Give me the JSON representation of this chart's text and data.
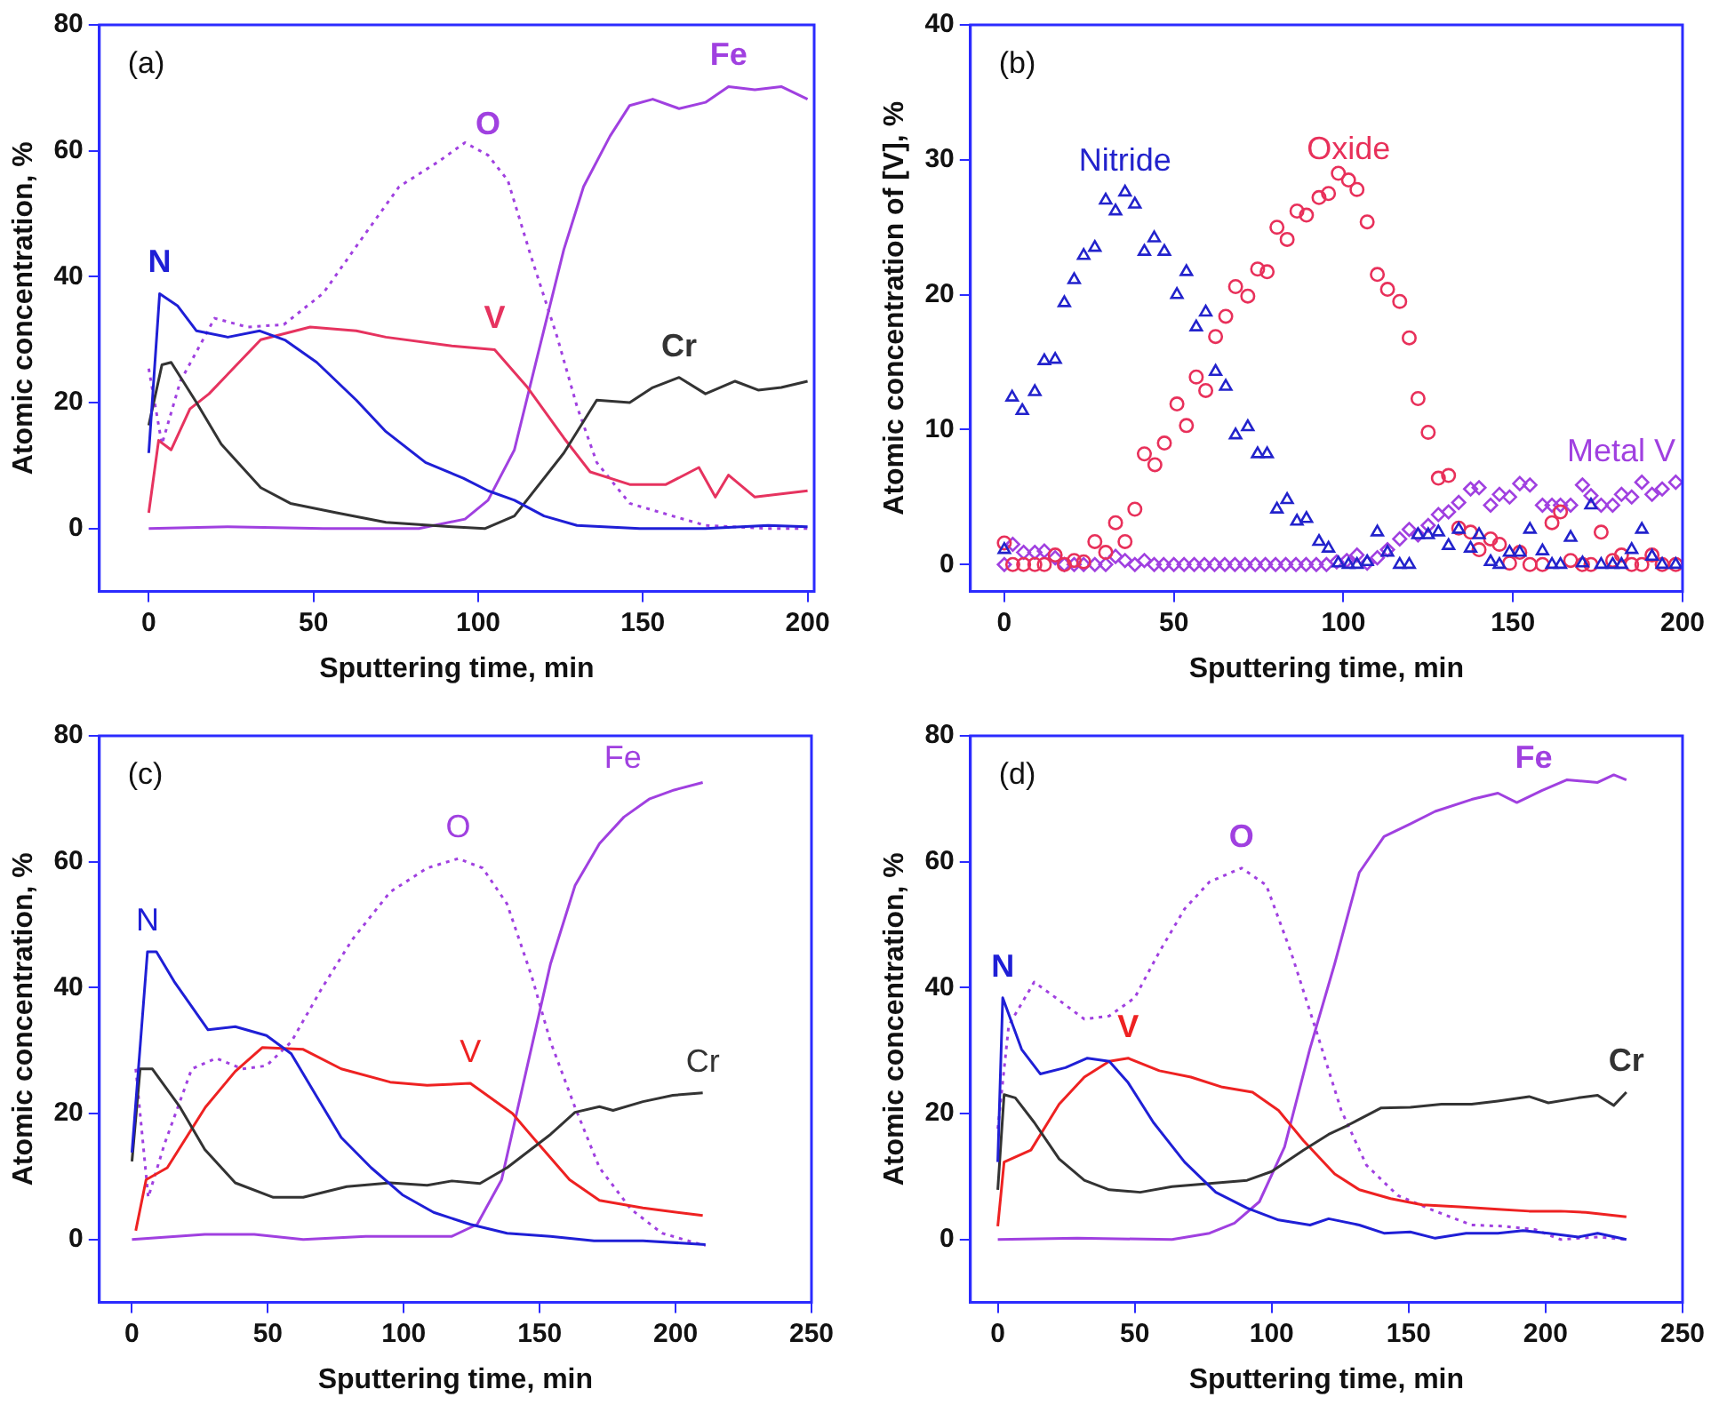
{
  "chart_data": [
    {
      "type": "line",
      "xlabel": "Sputtering time, min",
      "ylabel": "Atomic concentration, %",
      "xlim": [
        -15,
        202
      ],
      "ylim": [
        -10,
        80
      ],
      "xticks": [
        0,
        50,
        100,
        150,
        200
      ],
      "yticks": [
        0,
        20,
        40,
        60,
        80
      ],
      "grid": false,
      "legend": false,
      "marker": "none",
      "line_style": "solid",
      "annotations": [
        "(a)"
      ],
      "series": [
        {
          "name": "N",
          "color": "#1f1fd6",
          "x": [
            0,
            3.3,
            8.7,
            14.5,
            24,
            33.7,
            41.5,
            51,
            63,
            72,
            84,
            95.5,
            103,
            111,
            120,
            130,
            149,
            169,
            188,
            200
          ],
          "values": [
            12,
            37.3,
            35.4,
            31.4,
            30.4,
            31.4,
            29.9,
            26.4,
            20.4,
            15.4,
            10.5,
            8,
            6,
            4.5,
            2,
            0.5,
            0,
            0,
            0.5,
            0.3
          ]
        },
        {
          "name": "Cr",
          "color": "#333333",
          "x": [
            0,
            4,
            6.8,
            14.5,
            22,
            34,
            43,
            57,
            72,
            92,
            102,
            111,
            126,
            136,
            146,
            153,
            161,
            169,
            178,
            185,
            192,
            200
          ],
          "values": [
            16.4,
            26,
            26.4,
            20,
            13.4,
            6.5,
            4,
            2.5,
            1,
            0.3,
            0,
            2,
            12,
            20.4,
            20,
            22.4,
            24,
            21.4,
            23.4,
            22,
            22.4,
            23.4
          ]
        },
        {
          "name": "V",
          "color": "#e6335f",
          "x": [
            0,
            3,
            6.8,
            12.5,
            18.3,
            34,
            49,
            63,
            72,
            92,
            105,
            115,
            126,
            134,
            146,
            157,
            167,
            172,
            176,
            184,
            192,
            200
          ],
          "values": [
            2.5,
            14,
            12.5,
            19,
            21.4,
            30,
            32,
            31.4,
            30.4,
            29,
            28.4,
            22.4,
            14.4,
            9,
            7,
            7,
            9.7,
            5,
            8.5,
            5,
            5.5,
            6
          ]
        },
        {
          "name": "O",
          "color": "#a040e0",
          "line_style": "dotted",
          "x": [
            0,
            4,
            9.6,
            20,
            30,
            41,
            53,
            65,
            76,
            88,
            96,
            103,
            109,
            116,
            124,
            130,
            136,
            146,
            159,
            169,
            188,
            200
          ],
          "values": [
            25.4,
            13.4,
            23.4,
            33.4,
            32,
            32.4,
            37.4,
            46.3,
            54.3,
            58.3,
            61.3,
            59.3,
            55.3,
            43.3,
            30.4,
            19.4,
            10.5,
            4,
            2,
            0.5,
            0,
            0
          ]
        },
        {
          "name": "Fe",
          "color": "#a040e0",
          "x": [
            0,
            24,
            53,
            82,
            96,
            103,
            111,
            118,
            126,
            132,
            140,
            146,
            153,
            161,
            169,
            176,
            184,
            192,
            200
          ],
          "values": [
            0,
            0.3,
            0,
            0,
            1.5,
            4.5,
            12.5,
            27.4,
            44.3,
            54.3,
            62.3,
            67.2,
            68.2,
            66.7,
            67.7,
            70.2,
            69.7,
            70.2,
            68.2
          ]
        }
      ]
    },
    {
      "type": "scatter",
      "xlabel": "Sputtering time, min",
      "ylabel": "Atomic concentration of [V], %",
      "xlim": [
        -10,
        200
      ],
      "ylim": [
        -2,
        40
      ],
      "xticks": [
        0,
        50,
        100,
        150,
        200
      ],
      "yticks": [
        0,
        10,
        20,
        30,
        40
      ],
      "grid": false,
      "legend": false,
      "annotations": [
        "(b)"
      ],
      "series": [
        {
          "name": "Nitride",
          "color": "#2222cc",
          "marker": "triangle",
          "x": [
            0,
            2.3,
            5.3,
            9,
            11.8,
            15,
            17.7,
            20.6,
            23.4,
            26.7,
            29.9,
            32.8,
            35.6,
            38.5,
            41.3,
            44.2,
            47.2,
            50.9,
            53.7,
            56.6,
            59.4,
            62.3,
            65.3,
            68.2,
            71.8,
            74.7,
            77.5,
            80.4,
            83.4,
            86.3,
            89.1,
            92.8,
            95.6,
            98.5,
            101.5,
            104,
            107,
            110,
            113,
            116.6,
            119.4,
            122,
            125,
            128,
            131,
            134,
            137.5,
            140,
            143.4,
            146,
            149,
            152,
            155,
            158.7,
            161.5,
            164,
            167,
            170.5,
            173,
            176,
            179.4,
            182,
            185,
            188,
            191,
            194,
            198
          ],
          "values": [
            1.1,
            12.4,
            11.4,
            12.8,
            15.1,
            15.2,
            19.4,
            21.1,
            22.9,
            23.5,
            27,
            26.2,
            27.6,
            26.7,
            23.2,
            24.2,
            23.2,
            20,
            21.7,
            17.6,
            18.7,
            14.3,
            13.2,
            9.6,
            10.2,
            8.2,
            8.2,
            4.1,
            4.8,
            3.2,
            3.4,
            1.7,
            1.2,
            0.1,
            0,
            0,
            0.2,
            2.4,
            0.9,
            0,
            0,
            2.2,
            2.2,
            2.4,
            1.4,
            2.6,
            1.2,
            2.2,
            0.2,
            0,
            0.9,
            0.9,
            2.6,
            1,
            0,
            0,
            2,
            0.1,
            4.4,
            0,
            0,
            0,
            1.1,
            2.6,
            0.6,
            0,
            0
          ]
        },
        {
          "name": "Oxide",
          "color": "#e8305a",
          "marker": "circle",
          "x": [
            0,
            2.5,
            5.7,
            9,
            11.8,
            15,
            17.7,
            20.6,
            23.4,
            26.7,
            29.9,
            32.8,
            35.6,
            38.5,
            41.3,
            44.4,
            47.2,
            50.9,
            53.7,
            56.6,
            59.4,
            62.3,
            65.3,
            68.2,
            71.8,
            74.7,
            77.5,
            80.4,
            83.4,
            86.3,
            89.1,
            92.8,
            95.6,
            98.5,
            101.5,
            104,
            107,
            110,
            113,
            116.6,
            119.4,
            122,
            125,
            128,
            131,
            134,
            137.5,
            140,
            143.4,
            146,
            149,
            152,
            155,
            158.7,
            161.5,
            164,
            167,
            170.5,
            173,
            176,
            179.4,
            182,
            185,
            188,
            191,
            194,
            198
          ],
          "values": [
            1.6,
            0,
            0,
            0,
            0,
            0.7,
            0,
            0.3,
            0.2,
            1.7,
            0.9,
            3.1,
            1.7,
            4.1,
            8.2,
            7.4,
            9,
            11.9,
            10.3,
            13.9,
            12.9,
            16.9,
            18.4,
            20.6,
            19.9,
            21.9,
            21.7,
            25,
            24.1,
            26.2,
            25.9,
            27.2,
            27.5,
            29,
            28.5,
            27.8,
            25.4,
            21.5,
            20.4,
            19.5,
            16.8,
            12.3,
            9.8,
            6.4,
            6.6,
            2.7,
            2.4,
            1.1,
            1.9,
            1.5,
            0.1,
            0.9,
            0,
            0,
            3.1,
            3.9,
            0.3,
            0,
            0,
            2.4,
            0.3,
            0.7,
            0,
            0,
            0.7,
            0,
            0
          ]
        },
        {
          "name": "Metal V",
          "color": "#a040e0",
          "marker": "diamond",
          "x": [
            0,
            2.5,
            5.7,
            9,
            11.8,
            15,
            17.7,
            20.6,
            23.4,
            26.7,
            29.9,
            32.8,
            35.6,
            38.5,
            41.3,
            44.2,
            47,
            50,
            53,
            56,
            59,
            62,
            65,
            68,
            71,
            74,
            77,
            80,
            83,
            86,
            89,
            92,
            95,
            98,
            101,
            104,
            107,
            110,
            113,
            116.6,
            119.4,
            122,
            125,
            128,
            131,
            134,
            137.5,
            140,
            143.4,
            146,
            149,
            152,
            155,
            158.7,
            161.5,
            164,
            167,
            170.5,
            173,
            176,
            179.4,
            182,
            185,
            188,
            191,
            194,
            198
          ],
          "values": [
            0,
            1.5,
            0.9,
            0.9,
            1,
            0.5,
            0,
            0,
            0,
            0,
            0,
            0.6,
            0.3,
            0,
            0.3,
            0,
            0,
            0,
            0,
            0,
            0,
            0,
            0,
            0,
            0,
            0,
            0,
            0,
            0,
            0,
            0,
            0,
            0,
            0.2,
            0.3,
            0.7,
            0.1,
            0.5,
            1.1,
            1.9,
            2.6,
            2.2,
            2.9,
            3.7,
            3.9,
            4.6,
            5.6,
            5.7,
            4.4,
            5.2,
            5,
            6,
            5.9,
            4.4,
            4.4,
            4.4,
            4.4,
            5.9,
            5.1,
            4.4,
            4.4,
            5.2,
            5,
            6.1,
            5.2,
            5.6,
            6.1
          ]
        }
      ]
    },
    {
      "type": "line",
      "xlabel": "Sputtering time, min",
      "ylabel": "Atomic concentration, %",
      "xlim": [
        -12,
        250
      ],
      "ylim": [
        -10,
        80
      ],
      "xticks": [
        0,
        50,
        100,
        150,
        200,
        250
      ],
      "yticks": [
        0,
        20,
        40,
        60,
        80
      ],
      "grid": false,
      "legend": false,
      "marker": "none",
      "line_style": "solid",
      "annotations": [
        "(c)"
      ],
      "series": [
        {
          "name": "N",
          "color": "#1f1fd6",
          "x": [
            0,
            5.7,
            9,
            15.5,
            28,
            38,
            49.5,
            58.6,
            67.7,
            77,
            88,
            99.5,
            111,
            124.5,
            138,
            154,
            170,
            188,
            211
          ],
          "values": [
            13.8,
            45.7,
            45.7,
            41,
            33.3,
            33.8,
            32.4,
            29.5,
            22.9,
            16.2,
            11.4,
            7.1,
            4.3,
            2.4,
            1,
            0.5,
            -0.2,
            -0.2,
            -0.8
          ]
        },
        {
          "name": "Cr",
          "color": "#333333",
          "x": [
            0,
            3,
            7.5,
            17.7,
            26.8,
            38,
            52,
            63,
            79,
            95,
            108.6,
            117.7,
            128,
            138,
            154,
            163,
            172,
            177,
            188,
            199,
            210
          ],
          "values": [
            12.4,
            27.1,
            27.1,
            21,
            14.3,
            9,
            6.7,
            6.7,
            8.4,
            9,
            8.6,
            9.3,
            8.9,
            11.4,
            16.7,
            20.2,
            21.1,
            20.5,
            21.9,
            22.9,
            23.3
          ]
        },
        {
          "name": "V",
          "color": "#ee2222",
          "x": [
            1.4,
            5.2,
            13,
            27,
            38,
            48,
            63,
            77,
            95,
            108.6,
            124.5,
            140,
            149.5,
            161,
            172,
            188,
            210
          ],
          "values": [
            1.4,
            9.5,
            11.4,
            21,
            26.7,
            30.5,
            30.2,
            27.1,
            25,
            24.5,
            24.8,
            20,
            15.2,
            9.5,
            6.2,
            5,
            3.8
          ]
        },
        {
          "name": "O",
          "color": "#a040e0",
          "line_style": "dotted",
          "x": [
            1.4,
            6,
            12,
            22,
            31,
            40.5,
            49.5,
            58.6,
            70,
            81,
            95,
            108.6,
            120,
            129,
            138,
            147,
            154,
            163,
            172,
            183.6,
            195,
            211
          ],
          "values": [
            27.1,
            6.7,
            15.2,
            27.1,
            28.8,
            27.1,
            27.6,
            31.4,
            40,
            47.6,
            55.2,
            59,
            60.5,
            59,
            53.3,
            41.9,
            31.4,
            21,
            11.4,
            4.8,
            1,
            -1
          ]
        },
        {
          "name": "Fe",
          "color": "#a040e0",
          "x": [
            0,
            26.8,
            45,
            63,
            86,
            108.6,
            117.7,
            127,
            136,
            145,
            154,
            163,
            172,
            181,
            190.5,
            199.5,
            210
          ],
          "values": [
            0,
            0.8,
            0.8,
            0,
            0.5,
            0.5,
            0.5,
            2.4,
            9.5,
            26.7,
            43.8,
            56.2,
            62.9,
            67.1,
            70,
            71.4,
            72.6
          ]
        }
      ]
    },
    {
      "type": "line",
      "xlabel": "Sputtering time, min",
      "ylabel": "Atomic concentration, %",
      "xlim": [
        -10,
        250
      ],
      "ylim": [
        -10,
        80
      ],
      "xticks": [
        0,
        50,
        100,
        150,
        200,
        250
      ],
      "yticks": [
        0,
        20,
        40,
        60,
        80
      ],
      "grid": false,
      "legend": false,
      "marker": "none",
      "line_style": "solid",
      "annotations": [
        "(d)"
      ],
      "series": [
        {
          "name": "N",
          "color": "#1f1fd6",
          "x": [
            0,
            1.8,
            8.7,
            15.5,
            24.7,
            32.7,
            40.7,
            47.6,
            56.8,
            68.2,
            79.6,
            91,
            102.5,
            114,
            120.8,
            132,
            141,
            150.6,
            159.7,
            171,
            182.6,
            191.8,
            201,
            212,
            219,
            229.5
          ],
          "values": [
            12.3,
            38.4,
            30.2,
            26.3,
            27.3,
            28.8,
            28.3,
            24.9,
            18.6,
            12.3,
            7.5,
            5,
            3.1,
            2.3,
            3.3,
            2.3,
            1,
            1.2,
            0.2,
            1,
            1,
            1.4,
            1,
            0.4,
            1,
            0
          ]
        },
        {
          "name": "Cr",
          "color": "#333333",
          "x": [
            0,
            2.3,
            6.4,
            13.3,
            22.4,
            31.6,
            40.7,
            52,
            63.6,
            77.3,
            91,
            100,
            111.6,
            120.8,
            127.6,
            140,
            150.6,
            162,
            173,
            182.6,
            194,
            201,
            212,
            219,
            224.9,
            229.5
          ],
          "values": [
            7.9,
            23,
            22.5,
            18.6,
            12.8,
            9.4,
            7.9,
            7.5,
            8.4,
            8.9,
            9.4,
            10.8,
            14.2,
            16.7,
            18.1,
            20.9,
            21,
            21.5,
            21.5,
            22,
            22.7,
            21.7,
            22.5,
            22.9,
            21.3,
            23.4
          ]
        },
        {
          "name": "V",
          "color": "#ee2222",
          "x": [
            0,
            2.3,
            12.1,
            22.4,
            31.6,
            40.7,
            47.6,
            59,
            70.5,
            82,
            93,
            102.5,
            111.6,
            123,
            132,
            143.4,
            155,
            168.6,
            182.6,
            194,
            205.5,
            214.7,
            229.5
          ],
          "values": [
            2.1,
            12.3,
            14.2,
            21.5,
            25.8,
            28.3,
            28.8,
            26.8,
            25.8,
            24.2,
            23.4,
            20.5,
            15.7,
            10.4,
            7.9,
            6.5,
            5.5,
            5.2,
            4.8,
            4.5,
            4.5,
            4.3,
            3.6
          ]
        },
        {
          "name": "O",
          "color": "#a040e0",
          "line_style": "dotted",
          "x": [
            0,
            4,
            13.3,
            22.4,
            31.6,
            40.7,
            50,
            59,
            68.2,
            77.3,
            89,
            98,
            107,
            116.3,
            125.4,
            134.6,
            146,
            159.7,
            173,
            184.9,
            196,
            205.5,
            219,
            229.5
          ],
          "values": [
            17.6,
            34,
            40.9,
            38,
            35,
            35.5,
            38.4,
            45.7,
            52.5,
            56.8,
            59,
            56.3,
            45.7,
            33.1,
            20.5,
            11.8,
            7,
            4.5,
            2.3,
            2.1,
            1.6,
            0,
            0.4,
            0
          ]
        },
        {
          "name": "Fe",
          "color": "#a040e0",
          "x": [
            0,
            29,
            63.6,
            77.3,
            86.4,
            95.5,
            104.7,
            113.9,
            123,
            132,
            141,
            150.6,
            159.7,
            173,
            182.6,
            189.5,
            198.6,
            207.7,
            219,
            224.9,
            229.5
          ],
          "values": [
            0,
            0.2,
            0,
            1,
            2.6,
            6,
            14.7,
            30.2,
            43.8,
            58.3,
            64,
            66,
            68,
            69.9,
            70.9,
            69.4,
            71.3,
            73,
            72.6,
            73.8,
            73
          ]
        }
      ]
    }
  ]
}
